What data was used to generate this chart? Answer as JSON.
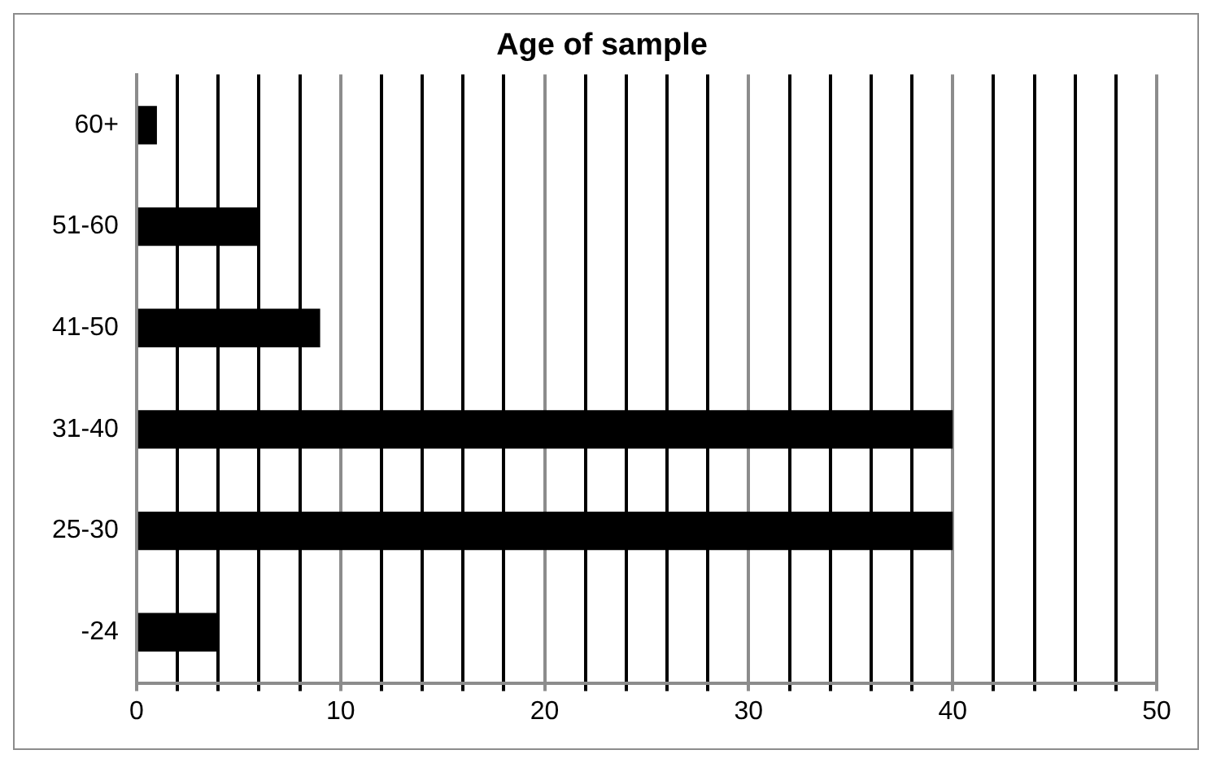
{
  "chart_data": {
    "type": "bar",
    "orientation": "horizontal",
    "title": "Age of sample",
    "categories": [
      "60+",
      "51-60",
      "41-50",
      "31-40",
      "25-30",
      "-24"
    ],
    "values": [
      1,
      6,
      9,
      40,
      40,
      4
    ],
    "color": "#000000",
    "xlim": [
      0,
      50
    ],
    "xticks": [
      0,
      {
        "value": 2,
        "label": null
      },
      {
        "value": 4,
        "label": null
      },
      {
        "value": 6,
        "label": null
      },
      {
        "value": 8,
        "label": null
      },
      10,
      {
        "value": 12,
        "label": null
      },
      {
        "value": 14,
        "label": null
      },
      {
        "value": 16,
        "label": null
      },
      {
        "value": 18,
        "label": null
      },
      20,
      {
        "value": 22,
        "label": null
      },
      {
        "value": 24,
        "label": null
      },
      {
        "value": 26,
        "label": null
      },
      {
        "value": 28,
        "label": null
      },
      30,
      {
        "value": 32,
        "label": null
      },
      {
        "value": 34,
        "label": null
      },
      {
        "value": 36,
        "label": null
      },
      {
        "value": 38,
        "label": null
      },
      40,
      {
        "value": 42,
        "label": null
      },
      {
        "value": 44,
        "label": null
      },
      {
        "value": 46,
        "label": null
      },
      {
        "value": 48,
        "label": null
      },
      50
    ],
    "grid": "x",
    "legend": false
  }
}
